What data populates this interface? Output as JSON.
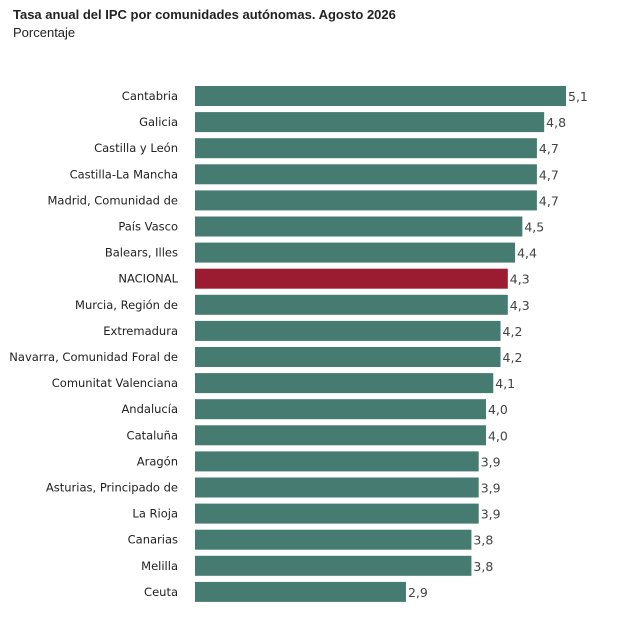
{
  "title": "Tasa anual del IPC por comunidades autónomas. Agosto 2026",
  "subtitle": "Porcentaje",
  "colors": {
    "bar": "#457b70",
    "highlight": "#9b1b30"
  },
  "chart_data": {
    "type": "bar",
    "orientation": "horizontal",
    "title": "Tasa anual del IPC por comunidades autónomas. Agosto 2026",
    "subtitle": "Porcentaje",
    "categories": [
      "Cantabria",
      "Galicia",
      "Castilla y León",
      "Castilla-La Mancha",
      "Madrid, Comunidad de",
      "País Vasco",
      "Balears, Illes",
      "NACIONAL",
      "Murcia, Región de",
      "Extremadura",
      "Navarra, Comunidad Foral de",
      "Comunitat Valenciana",
      "Andalucía",
      "Cataluña",
      "Aragón",
      "Asturias, Principado de",
      "La Rioja",
      "Canarias",
      "Melilla",
      "Ceuta"
    ],
    "values": [
      5.1,
      4.8,
      4.7,
      4.7,
      4.7,
      4.5,
      4.4,
      4.3,
      4.3,
      4.2,
      4.2,
      4.1,
      4.0,
      4.0,
      3.9,
      3.9,
      3.9,
      3.8,
      3.8,
      2.9
    ],
    "value_labels": [
      "5,1",
      "4,8",
      "4,7",
      "4,7",
      "4,7",
      "4,5",
      "4,4",
      "4,3",
      "4,3",
      "4,2",
      "4,2",
      "4,1",
      "4,0",
      "4,0",
      "3,9",
      "3,9",
      "3,9",
      "3,8",
      "3,8",
      "2,9"
    ],
    "highlight_category": "NACIONAL",
    "xlim": [
      0,
      5.1
    ],
    "grid": false,
    "legend": "none"
  }
}
